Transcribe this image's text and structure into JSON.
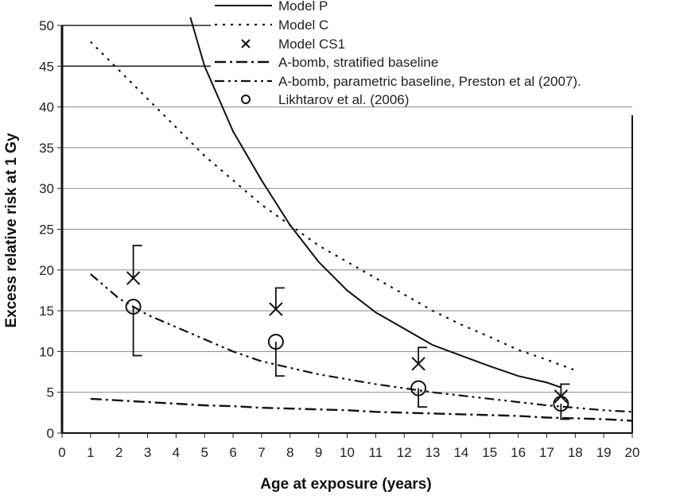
{
  "chart_data": {
    "type": "line",
    "xlabel": "Age at exposure (years)",
    "ylabel": "Excess relative risk at 1 Gy",
    "xlim": [
      0,
      20
    ],
    "ylim": [
      0,
      50
    ],
    "xticks": [
      "0",
      "1",
      "2",
      "3",
      "4",
      "5",
      "6",
      "7",
      "8",
      "9",
      "10",
      "11",
      "12",
      "13",
      "14",
      "15",
      "16",
      "17",
      "18",
      "19",
      "20"
    ],
    "yticks": [
      "0",
      "5",
      "10",
      "15",
      "20",
      "25",
      "30",
      "35",
      "40",
      "45",
      "50"
    ],
    "grid": "horizontal",
    "legend_position": "top-right",
    "series": [
      {
        "name": "Model P",
        "style": "solid",
        "x": [
          4.5,
          5,
          6,
          7,
          8,
          9,
          10,
          11,
          12,
          13,
          14,
          15,
          16,
          17,
          17.5
        ],
        "y": [
          51,
          45,
          37,
          31,
          25.5,
          21,
          17.5,
          14.8,
          12.8,
          10.8,
          9.5,
          8.2,
          7,
          6.2,
          5.6
        ]
      },
      {
        "name": "Model C",
        "style": "dotted",
        "x": [
          1,
          2,
          3,
          4,
          5,
          6,
          7,
          8,
          9,
          10,
          11,
          12,
          13,
          14,
          15,
          16,
          17,
          18
        ],
        "y": [
          48,
          44.5,
          41,
          37.5,
          34,
          31,
          28,
          25.5,
          23,
          21,
          19,
          17,
          15,
          13.3,
          11.8,
          10.2,
          9,
          7.7
        ]
      },
      {
        "name": "A-bomb, stratified baseline",
        "style": "dash-dot",
        "x": [
          1,
          2,
          3,
          4,
          5,
          6,
          7,
          8,
          9,
          10,
          11,
          12,
          13,
          14,
          15,
          16,
          17,
          18,
          19,
          20
        ],
        "y": [
          4.2,
          4.0,
          3.8,
          3.6,
          3.4,
          3.3,
          3.1,
          3.0,
          2.9,
          2.8,
          2.6,
          2.5,
          2.4,
          2.3,
          2.2,
          2.1,
          1.9,
          1.8,
          1.7,
          1.5
        ]
      },
      {
        "name": "A-bomb, parametric baseline, Preston et al (2007).",
        "style": "dash-dot-dot",
        "x": [
          1,
          2,
          3,
          4,
          5,
          6,
          7,
          8,
          9,
          10,
          11,
          12,
          13,
          14,
          15,
          16,
          17,
          18,
          19,
          20
        ],
        "y": [
          19.5,
          16.5,
          14.5,
          13,
          11.5,
          10,
          8.8,
          8,
          7.2,
          6.6,
          6,
          5.5,
          5,
          4.6,
          4.2,
          3.8,
          3.4,
          3.1,
          2.8,
          2.6
        ]
      }
    ],
    "points": [
      {
        "name": "Model CS1",
        "marker": "x",
        "x": [
          2.5,
          7.5,
          12.5,
          17.5
        ],
        "y": [
          19,
          15.2,
          8.5,
          4.5
        ],
        "err_upper": [
          23,
          17.8,
          10.5,
          6
        ]
      },
      {
        "name": "Likhtarov et al. (2006)",
        "marker": "o",
        "x": [
          2.5,
          7.5,
          12.5,
          17.5
        ],
        "y": [
          15.5,
          11.2,
          5.5,
          3.6
        ],
        "err_lower": [
          9.5,
          7,
          3.2,
          1.7
        ]
      }
    ]
  }
}
